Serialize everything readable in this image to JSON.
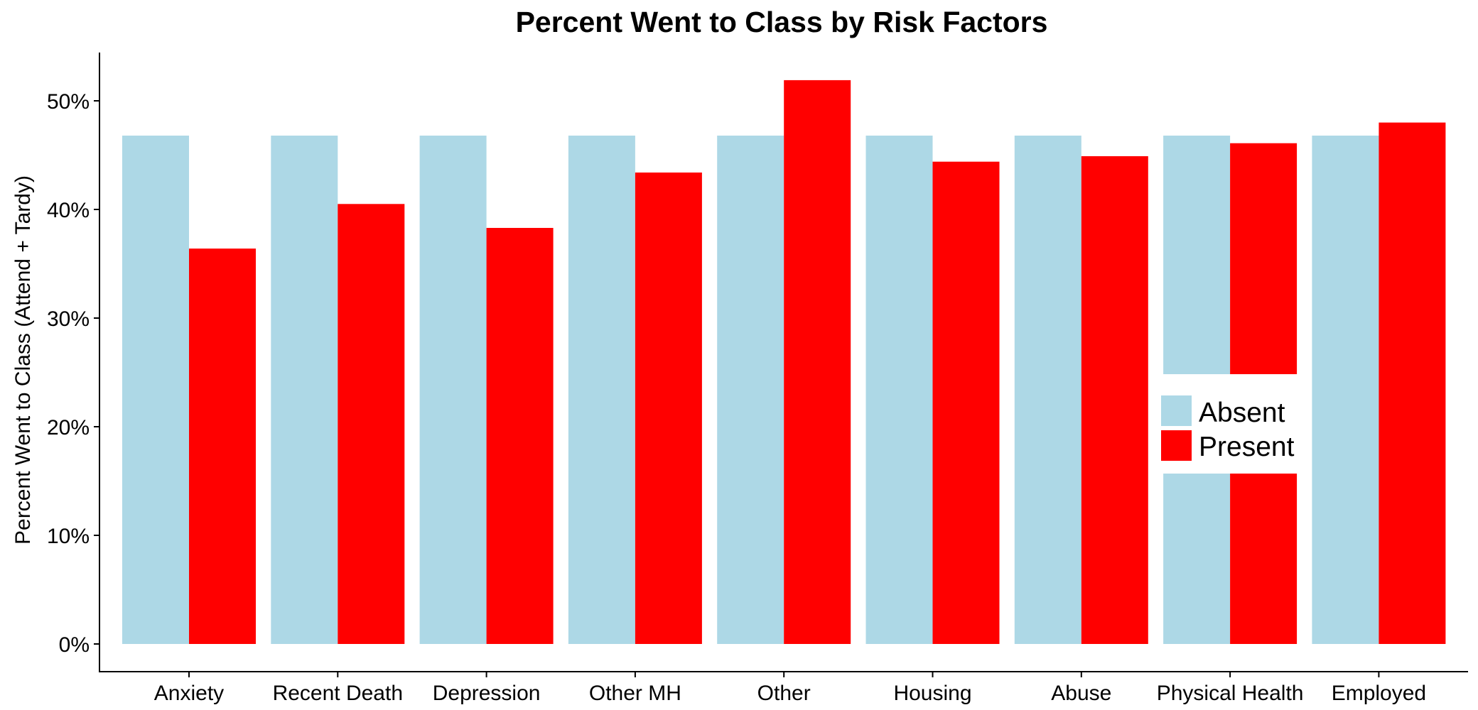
{
  "chart_data": {
    "type": "bar",
    "title": "Percent Went to Class by Risk Factors",
    "xlabel": "",
    "ylabel": "Percent Went to Class (Attend + Tardy)",
    "categories": [
      "Anxiety",
      "Recent Death",
      "Depression",
      "Other MH",
      "Other",
      "Housing",
      "Abuse",
      "Physical Health",
      "Employed"
    ],
    "series": [
      {
        "name": "Absent",
        "color": "#add8e6",
        "values": [
          46.8,
          46.8,
          46.8,
          46.8,
          46.8,
          46.8,
          46.8,
          46.8,
          46.8
        ]
      },
      {
        "name": "Present",
        "color": "#ff0000",
        "values": [
          36.4,
          40.5,
          38.3,
          43.4,
          51.9,
          44.4,
          44.9,
          46.1,
          48.0
        ]
      }
    ],
    "ylim": [
      0,
      54.5
    ],
    "yticks": [
      0,
      10,
      20,
      30,
      40,
      50
    ],
    "ytick_labels": [
      "0%",
      "10%",
      "20%",
      "30%",
      "40%",
      "50%"
    ],
    "grid": false,
    "legend": {
      "position": "right, over plot",
      "entries": [
        "Absent",
        "Present"
      ]
    }
  }
}
